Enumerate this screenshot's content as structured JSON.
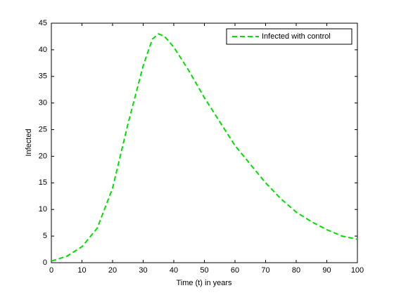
{
  "chart_data": {
    "type": "line",
    "x_label": "Time (t) in years",
    "y_label": "Infected",
    "x": [
      0,
      5,
      10,
      15,
      20,
      25,
      30,
      33,
      35,
      37,
      40,
      45,
      50,
      55,
      60,
      65,
      70,
      75,
      80,
      85,
      90,
      95,
      100
    ],
    "series": [
      {
        "name": "Infected with control",
        "color": "#00e000",
        "values": [
          0.3,
          1.2,
          3,
          6.5,
          14,
          26,
          37,
          42,
          43,
          42.5,
          40.5,
          36,
          31,
          26.5,
          22,
          18.5,
          15,
          12,
          9.5,
          7.7,
          6.2,
          5,
          4.4
        ]
      }
    ],
    "xlim": [
      0,
      100
    ],
    "xticks": [
      0,
      10,
      20,
      30,
      40,
      50,
      60,
      70,
      80,
      90,
      100
    ],
    "ylim": [
      0,
      45
    ],
    "yticks": [
      0,
      5,
      10,
      15,
      20,
      25,
      30,
      35,
      40,
      45
    ],
    "grid": false,
    "legend": "upper right"
  }
}
